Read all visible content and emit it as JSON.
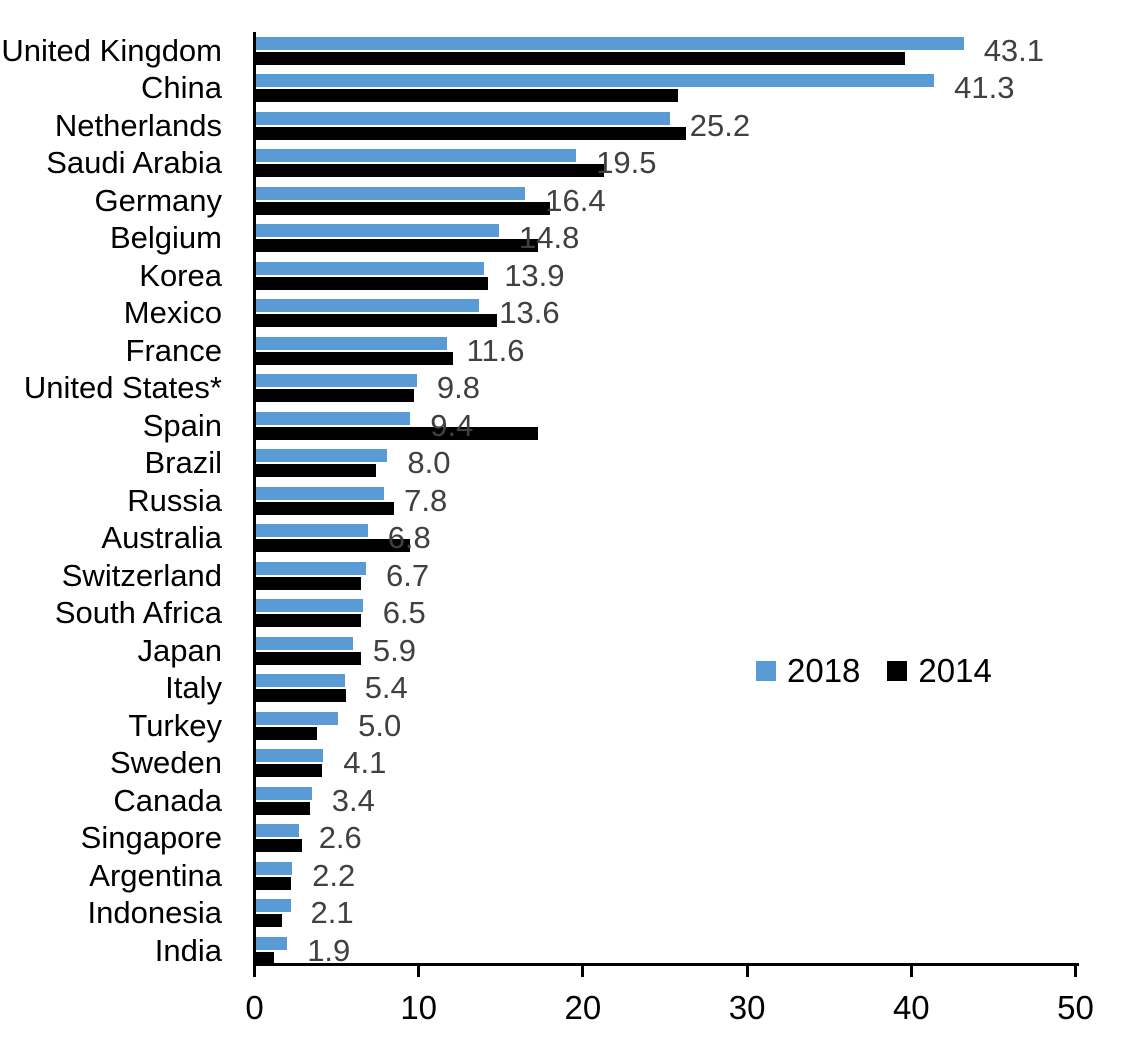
{
  "chart_data": {
    "type": "bar",
    "orientation": "horizontal",
    "title": "",
    "categories": [
      "United Kingdom",
      "China",
      "Netherlands",
      "Saudi Arabia",
      "Germany",
      "Belgium",
      "Korea",
      "Mexico",
      "France",
      "United States*",
      "Spain",
      "Brazil",
      "Russia",
      "Australia",
      "Switzerland",
      "South Africa",
      "Japan",
      "Italy",
      "Turkey",
      "Sweden",
      "Canada",
      "Singapore",
      "Argentina",
      "Indonesia",
      "India"
    ],
    "series": [
      {
        "name": "2018",
        "color": "#5B9BD5",
        "values": [
          43.1,
          41.3,
          25.2,
          19.5,
          16.4,
          14.8,
          13.9,
          13.6,
          11.6,
          9.8,
          9.4,
          8.0,
          7.8,
          6.8,
          6.7,
          6.5,
          5.9,
          5.4,
          5.0,
          4.1,
          3.4,
          2.6,
          2.2,
          2.1,
          1.9
        ],
        "data_labels": [
          "43.1",
          "41.3",
          "25.2",
          "19.5",
          "16.4",
          "14.8",
          "13.9",
          "13.6",
          "11.6",
          "9.8",
          "9.4",
          "8.0",
          "7.8",
          "6.8",
          "6.7",
          "6.5",
          "5.9",
          "5.4",
          "5.0",
          "4.1",
          "3.4",
          "2.6",
          "2.2",
          "2.1",
          "1.9"
        ]
      },
      {
        "name": "2014",
        "color": "#000000",
        "values": [
          39.5,
          25.7,
          26.2,
          21.2,
          17.9,
          17.2,
          14.1,
          14.7,
          12.0,
          9.6,
          17.2,
          7.3,
          8.4,
          9.4,
          6.4,
          6.4,
          6.4,
          5.5,
          3.7,
          4.0,
          3.3,
          2.8,
          2.1,
          1.6,
          1.1
        ]
      }
    ],
    "xlim": [
      0,
      50
    ],
    "x_ticks": [
      "0",
      "10",
      "20",
      "30",
      "40",
      "50"
    ],
    "x_tick_values": [
      0,
      10,
      20,
      30,
      40,
      50
    ],
    "grid": false,
    "legend": {
      "position": "center-right",
      "entries": [
        "2018",
        "2014"
      ]
    },
    "value_label_color": "#404040",
    "axis_color": "#000000"
  }
}
